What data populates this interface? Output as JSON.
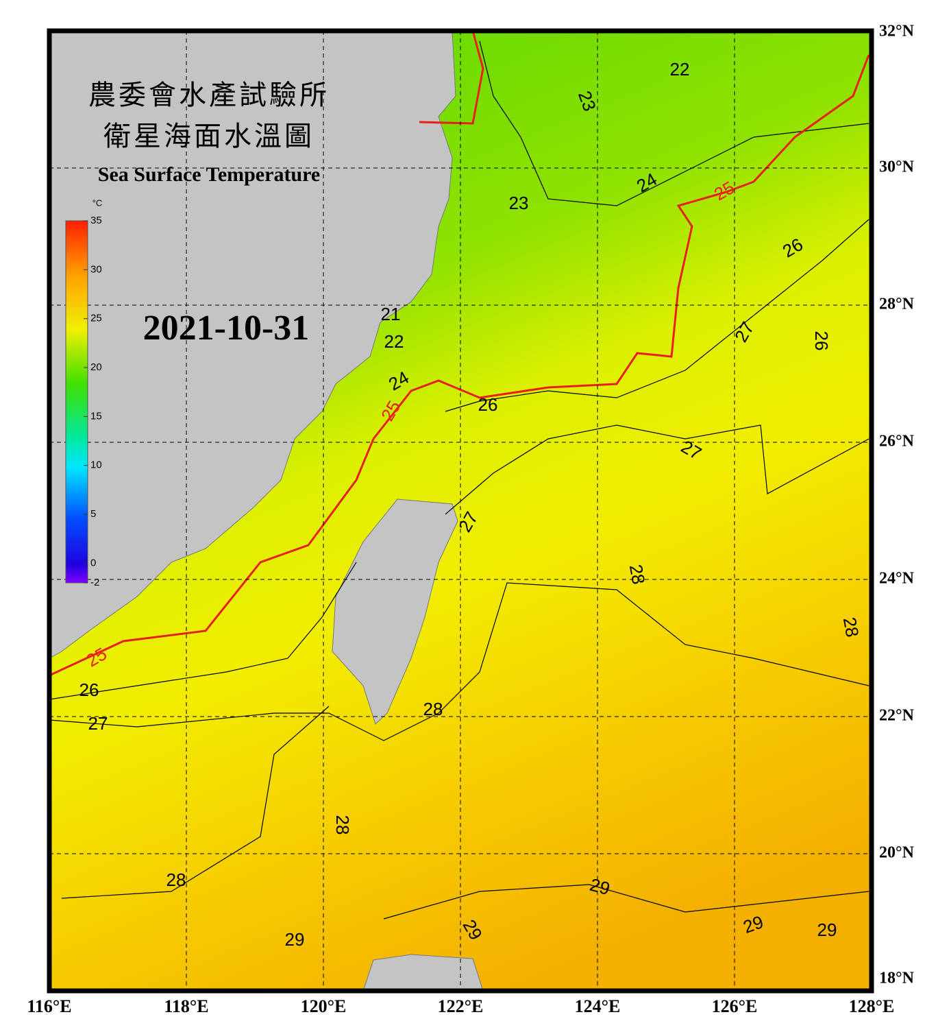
{
  "header": {
    "title_zh_1": "農委會水產試驗所",
    "title_zh_2": "衛星海面水溫圖",
    "title_en": "Sea Surface Temperature",
    "date": "2021-10-31"
  },
  "colorbar": {
    "unit": "°C",
    "range": [
      -2,
      35
    ],
    "ticks": [
      35,
      30,
      25,
      20,
      15,
      10,
      5,
      0,
      -2
    ]
  },
  "map": {
    "xlim": [
      116,
      128
    ],
    "ylim": [
      18,
      32
    ],
    "xticks": [
      {
        "value": 116,
        "label": "116°E"
      },
      {
        "value": 118,
        "label": "118°E"
      },
      {
        "value": 120,
        "label": "120°E"
      },
      {
        "value": 122,
        "label": "122°E"
      },
      {
        "value": 124,
        "label": "124°E"
      },
      {
        "value": 126,
        "label": "126°E"
      },
      {
        "value": 128,
        "label": "128°E"
      }
    ],
    "yticks": [
      {
        "value": 18,
        "label": "18°N"
      },
      {
        "value": 20,
        "label": "20°N"
      },
      {
        "value": 22,
        "label": "22°N"
      },
      {
        "value": 24,
        "label": "24°N"
      },
      {
        "value": 26,
        "label": "26°N"
      },
      {
        "value": 28,
        "label": "28°N"
      },
      {
        "value": 30,
        "label": "30°N"
      },
      {
        "value": 32,
        "label": "32°N"
      }
    ],
    "grid": true,
    "contours": [
      {
        "color": "#000000",
        "labels": [
          22,
          23,
          24,
          23,
          26,
          21,
          22,
          27,
          26,
          24,
          26,
          27,
          27,
          28,
          28,
          26,
          27,
          28,
          28,
          28,
          29,
          29,
          29,
          29,
          29
        ]
      },
      {
        "color": "#e8201a",
        "labels": [
          25,
          25,
          25
        ]
      }
    ]
  }
}
